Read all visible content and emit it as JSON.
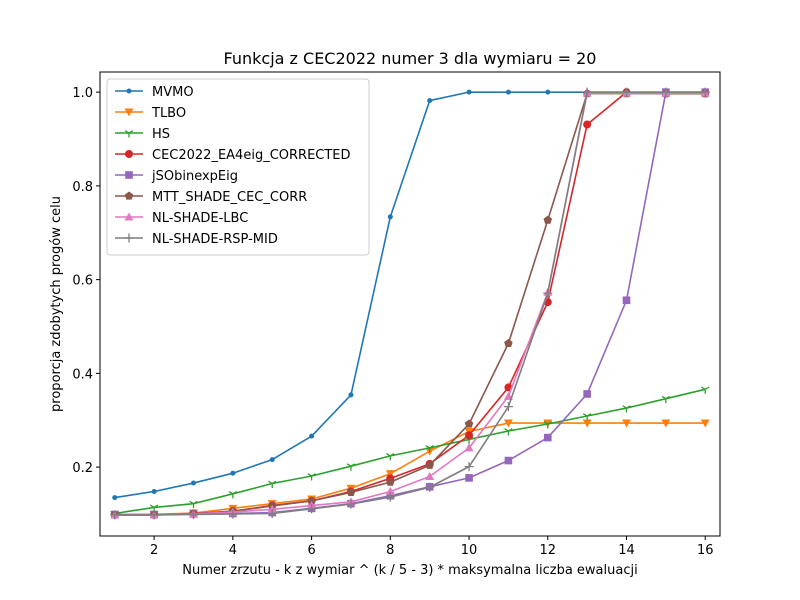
{
  "chart_data": {
    "type": "line",
    "title": "Funkcja z CEC2022 numer 3 dla wymiaru = 20",
    "xlabel": "Numer zrzutu - k z wymiar ^ (k / 5 - 3) * maksymalna liczba ewaluacji",
    "ylabel": "proporcja zdobytych progów celu",
    "xlim": [
      0.625,
      16.375
    ],
    "ylim": [
      0.053,
      1.043
    ],
    "xticks": [
      2,
      4,
      6,
      8,
      10,
      12,
      14,
      16
    ],
    "xtick_labels": [
      "2",
      "4",
      "6",
      "8",
      "10",
      "12",
      "14",
      "16"
    ],
    "yticks": [
      0.2,
      0.4,
      0.6,
      0.8,
      1.0
    ],
    "ytick_labels": [
      "0.2",
      "0.4",
      "0.6",
      "0.8",
      "1.0"
    ],
    "grid": false,
    "legend_position": "top-left",
    "x": [
      1,
      2,
      3,
      4,
      5,
      6,
      7,
      8,
      9,
      10,
      11,
      12,
      13,
      14,
      15,
      16
    ],
    "series": [
      {
        "name": "MVMO",
        "color": "#1f77b4",
        "marker": "point",
        "values": [
          0.135,
          0.148,
          0.166,
          0.187,
          0.216,
          0.266,
          0.354,
          0.734,
          0.982,
          1.0,
          1.0,
          1.0,
          1.0,
          1.0,
          1.0,
          1.0
        ]
      },
      {
        "name": "TLBO",
        "color": "#ff7f0e",
        "marker": "triangle-down",
        "values": [
          0.098,
          0.099,
          0.102,
          0.112,
          0.122,
          0.132,
          0.155,
          0.186,
          0.234,
          0.276,
          0.294,
          0.294,
          0.294,
          0.294,
          0.294,
          0.294
        ]
      },
      {
        "name": "HS",
        "color": "#2ca02c",
        "marker": "tri-down",
        "values": [
          0.101,
          0.114,
          0.122,
          0.143,
          0.165,
          0.181,
          0.202,
          0.224,
          0.241,
          0.259,
          0.277,
          0.292,
          0.309,
          0.326,
          0.346,
          0.366
        ]
      },
      {
        "name": "CEC2022_EA4eig_CORRECTED",
        "color": "#d62728",
        "marker": "circle",
        "values": [
          0.098,
          0.098,
          0.1,
          0.106,
          0.118,
          0.128,
          0.148,
          0.176,
          0.207,
          0.268,
          0.37,
          0.552,
          0.931,
          1.0,
          0.997,
          0.997
        ]
      },
      {
        "name": "jSObinexpEig",
        "color": "#9467bd",
        "marker": "square",
        "values": [
          0.099,
          0.099,
          0.1,
          0.101,
          0.103,
          0.112,
          0.122,
          0.139,
          0.158,
          0.177,
          0.214,
          0.263,
          0.356,
          0.556,
          1.0,
          1.0
        ]
      },
      {
        "name": "MTT_SHADE_CEC_CORR",
        "color": "#8c564b",
        "marker": "pentagon",
        "values": [
          0.098,
          0.098,
          0.101,
          0.106,
          0.117,
          0.128,
          0.146,
          0.168,
          0.204,
          0.292,
          0.464,
          0.727,
          0.997,
          0.997,
          0.997,
          0.997
        ]
      },
      {
        "name": "NL-SHADE-LBC",
        "color": "#e377c2",
        "marker": "triangle-up",
        "values": [
          0.098,
          0.098,
          0.1,
          0.104,
          0.11,
          0.118,
          0.126,
          0.148,
          0.18,
          0.241,
          0.351,
          0.573,
          0.998,
          0.998,
          0.998,
          0.998
        ]
      },
      {
        "name": "NL-SHADE-RSP-MID",
        "color": "#7f7f7f",
        "marker": "plus",
        "values": [
          0.098,
          0.098,
          0.099,
          0.1,
          0.101,
          0.111,
          0.121,
          0.136,
          0.157,
          0.201,
          0.329,
          0.571,
          1.0,
          1.0,
          1.0,
          1.0
        ]
      }
    ]
  }
}
